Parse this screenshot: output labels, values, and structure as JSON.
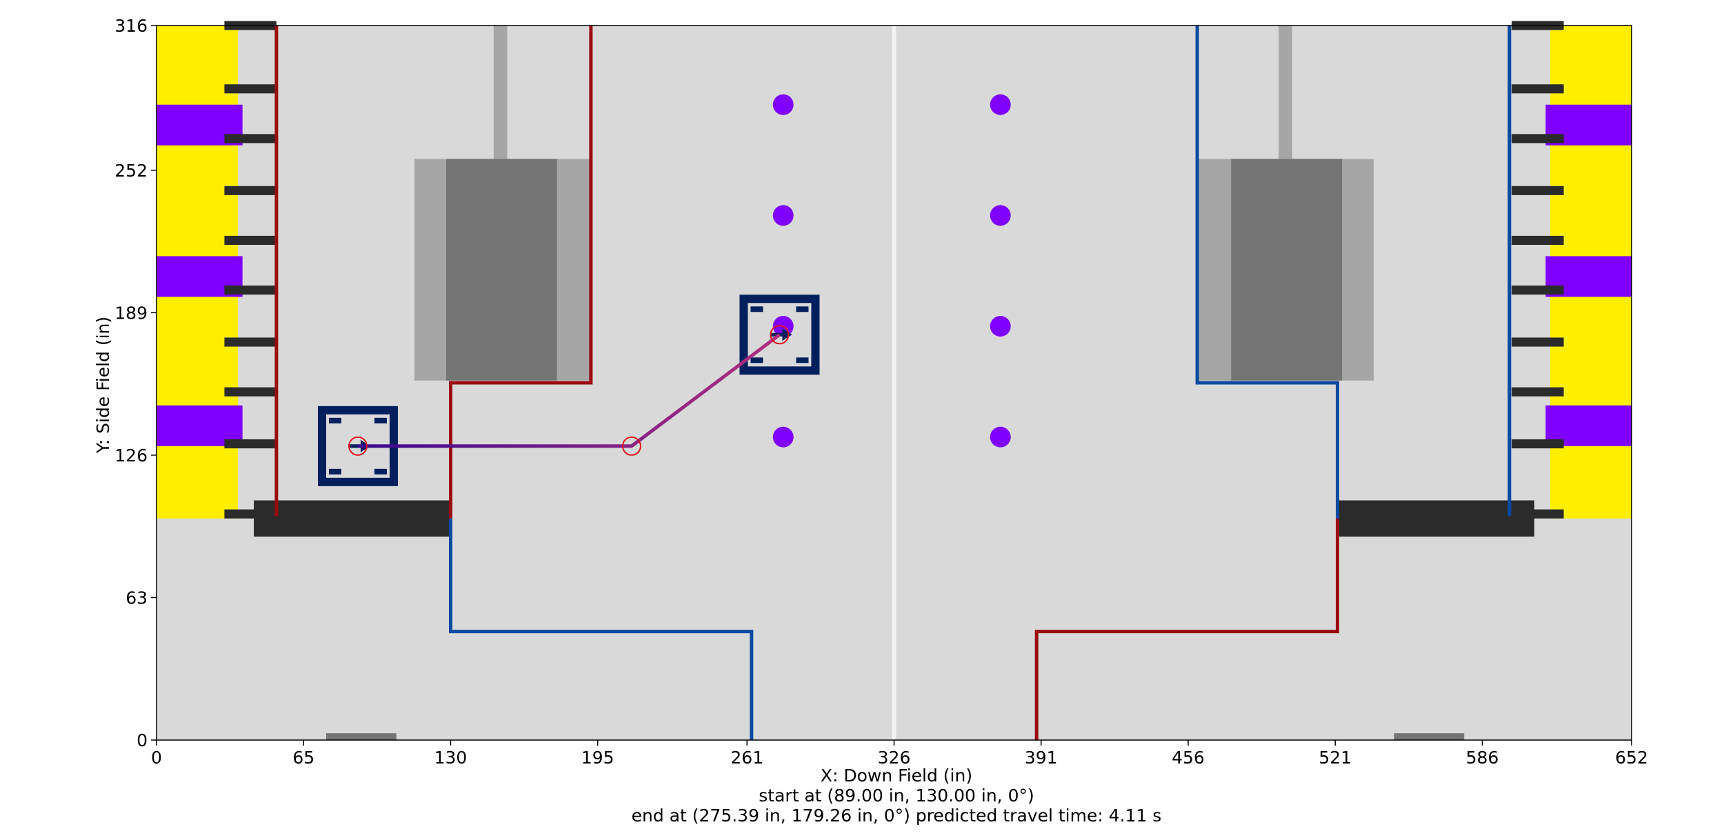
{
  "chart_data": {
    "type": "scatter",
    "xlabel": "X: Down Field (in)",
    "ylabel": "Y: Side Field (in)",
    "xlim": [
      0,
      652
    ],
    "ylim": [
      0,
      316
    ],
    "xticks": [
      "0",
      "65",
      "130",
      "195",
      "261",
      "326",
      "391",
      "456",
      "521",
      "586",
      "652"
    ],
    "yticks": [
      "0",
      "63",
      "126",
      "189",
      "252",
      "316"
    ],
    "info_lines": [
      "start at (89.00 in, 130.00 in, 0°)",
      "end at (275.39 in, 179.26 in, 0°) predicted travel time: 4.11 s"
    ],
    "grid": false,
    "path": {
      "waypoints": [
        [
          89.0,
          130.0
        ],
        [
          210.0,
          130.0
        ],
        [
          275.39,
          179.26
        ]
      ],
      "start_pose": [
        89.0,
        130.0,
        0
      ],
      "end_pose": [
        275.39,
        179.26,
        0
      ],
      "travel_time_s": 4.11,
      "color_start": "#3b0a8f",
      "color_end": "#b0307f"
    },
    "game_pieces": {
      "color": "#8000ff",
      "points": [
        [
          277,
          281
        ],
        [
          277,
          232
        ],
        [
          277,
          183
        ],
        [
          277,
          134
        ],
        [
          373,
          281
        ],
        [
          373,
          232
        ],
        [
          373,
          183
        ],
        [
          373,
          134
        ]
      ]
    },
    "robot_color": "#001f5c",
    "colors": {
      "field": "#d9d9d9",
      "red_line": "#9a0a10",
      "blue_line": "#0a4aa0",
      "station_yellow": "#ffee00",
      "station_purple": "#8000ff",
      "dark": "#2b2b2b",
      "grey_dark": "#747474",
      "grey_light": "#a6a6a6"
    }
  }
}
